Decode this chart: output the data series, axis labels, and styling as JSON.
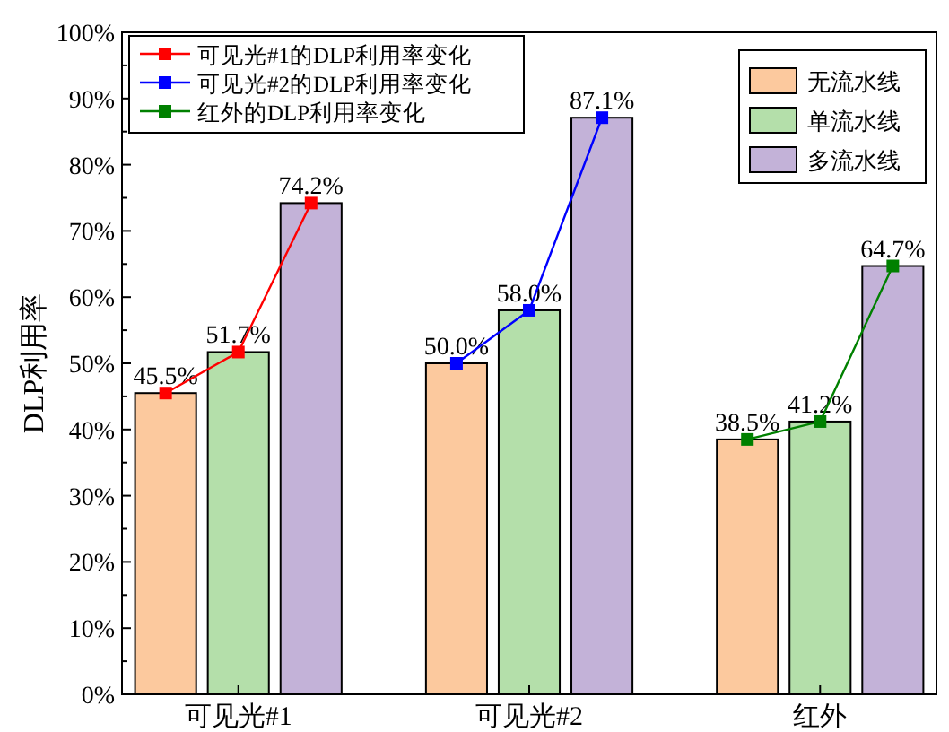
{
  "chart_data": {
    "type": "bar",
    "ylabel": "DLP利用率",
    "xlim": [
      0.6,
      3.4
    ],
    "xticks": [
      {
        "value": 1,
        "label": "可见光#1"
      },
      {
        "value": 2,
        "label": "可见光#2"
      },
      {
        "value": 3,
        "label": "红外"
      }
    ],
    "ylim": [
      0,
      100
    ],
    "yticks": [
      {
        "value": 0,
        "label": "0%"
      },
      {
        "value": 10,
        "label": "10%"
      },
      {
        "value": 20,
        "label": "20%"
      },
      {
        "value": 30,
        "label": "30%"
      },
      {
        "value": 40,
        "label": "40%"
      },
      {
        "value": 50,
        "label": "50%"
      },
      {
        "value": 60,
        "label": "60%"
      },
      {
        "value": 70,
        "label": "70%"
      },
      {
        "value": 80,
        "label": "80%"
      },
      {
        "value": 90,
        "label": "90%"
      },
      {
        "value": 100,
        "label": "100%"
      }
    ],
    "series": [
      {
        "name": "无流水线",
        "color": "#fcc99e",
        "x": [
          0.75,
          1.75,
          2.75
        ],
        "values": [
          45.5,
          50.0,
          38.5
        ],
        "value_labels": [
          "45.5%",
          "50.0%",
          "38.5%"
        ]
      },
      {
        "name": "单流水线",
        "color": "#b4dfaa",
        "x": [
          1,
          2,
          3
        ],
        "values": [
          51.7,
          58.0,
          41.2
        ],
        "value_labels": [
          "51.7%",
          "58.0%",
          "41.2%"
        ]
      },
      {
        "name": "多流水线",
        "color": "#c3b2d8",
        "x": [
          1.25,
          2.25,
          3.25
        ],
        "values": [
          74.2,
          87.1,
          64.7
        ],
        "value_labels": [
          "74.2%",
          "87.1%",
          "64.7%"
        ]
      },
      {
        "type": "line",
        "name": "可见光#1的DLP利用率变化",
        "color": "#ff0000",
        "x": [
          0.75,
          1,
          1.25
        ],
        "values": [
          45.5,
          51.7,
          74.2
        ]
      },
      {
        "type": "line",
        "name": "可见光#2的DLP利用率变化",
        "color": "#0000ff",
        "x": [
          1.75,
          2,
          2.25
        ],
        "values": [
          50.0,
          58.0,
          87.1
        ]
      },
      {
        "type": "line",
        "name": "红外的DLP利用率变化",
        "color": "#008000",
        "x": [
          2.75,
          3,
          3.25
        ],
        "values": [
          38.5,
          41.2,
          64.7
        ]
      }
    ],
    "marker": "square",
    "legend": "top",
    "grid": false
  }
}
